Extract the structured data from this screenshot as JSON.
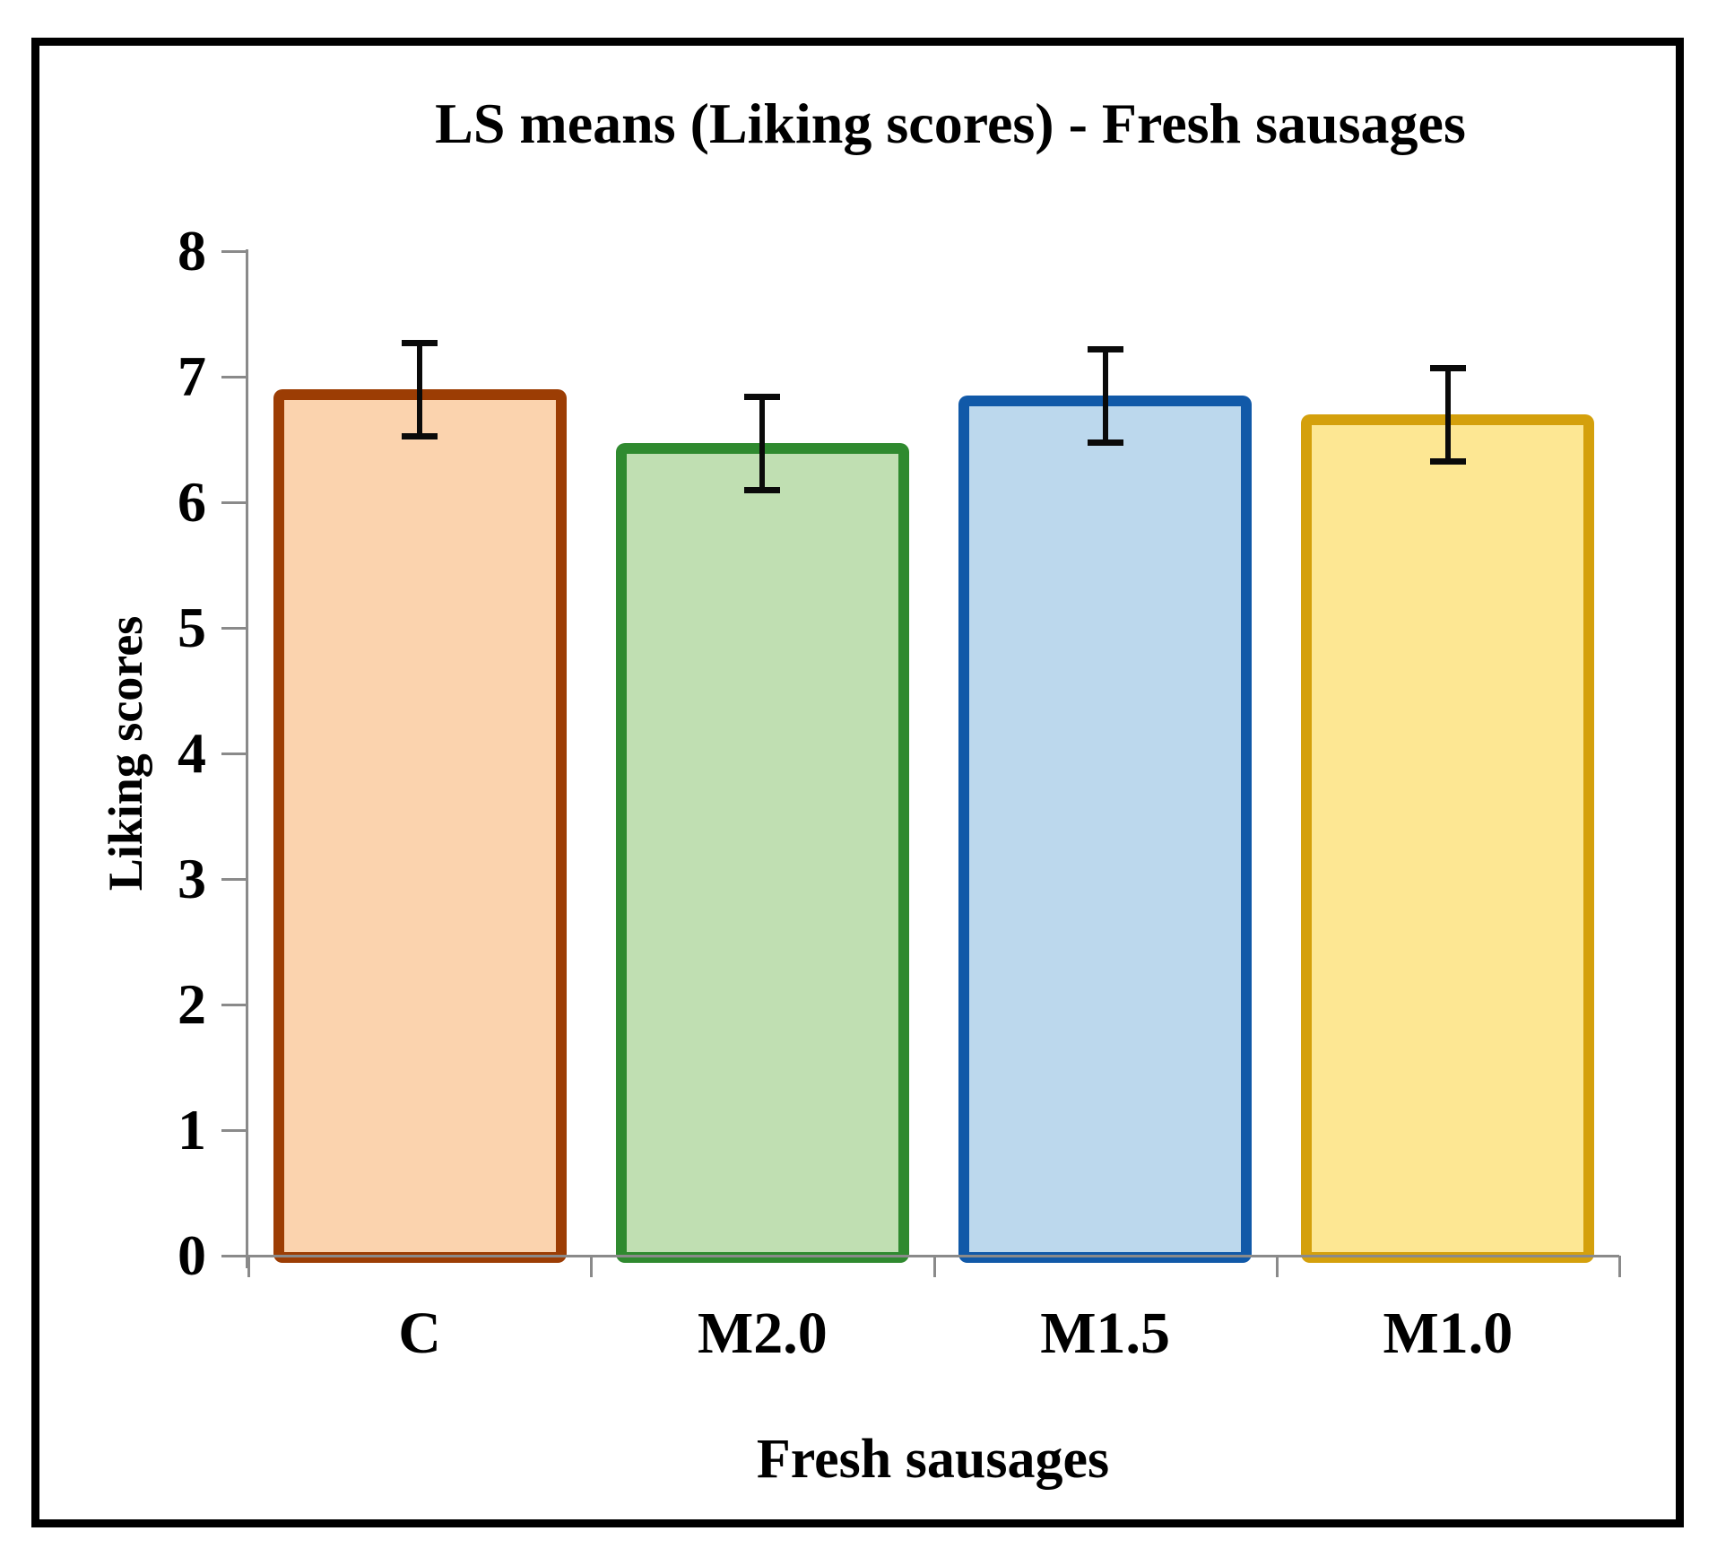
{
  "figure": {
    "title": "LS means (Liking scores) - Fresh sausages"
  },
  "chart_data": {
    "type": "bar",
    "title": "LS means (Liking scores) - Fresh sausages",
    "xlabel": "Fresh sausages",
    "ylabel": "Liking scores",
    "categories": [
      "C",
      "M2.0",
      "M1.5",
      "M1.0"
    ],
    "values": [
      6.9,
      6.47,
      6.85,
      6.7
    ],
    "errors": [
      0.37,
      0.37,
      0.37,
      0.37
    ],
    "bar_fill_colors": [
      "#FBD3AE",
      "#C0DFB2",
      "#BCD8ED",
      "#FDE793"
    ],
    "bar_border_colors": [
      "#9C3D04",
      "#2F8A2F",
      "#1159A8",
      "#D4A00C"
    ],
    "error_bar_color": "#0a0a0a",
    "axis_color": "#8a8a8a",
    "frame_border_color": "#000000",
    "ylim": [
      0,
      8
    ],
    "ytick_step": 1,
    "ytick_labels": [
      "0",
      "1",
      "2",
      "3",
      "4",
      "5",
      "6",
      "7",
      "8"
    ],
    "grid": "off",
    "legend": "none"
  }
}
